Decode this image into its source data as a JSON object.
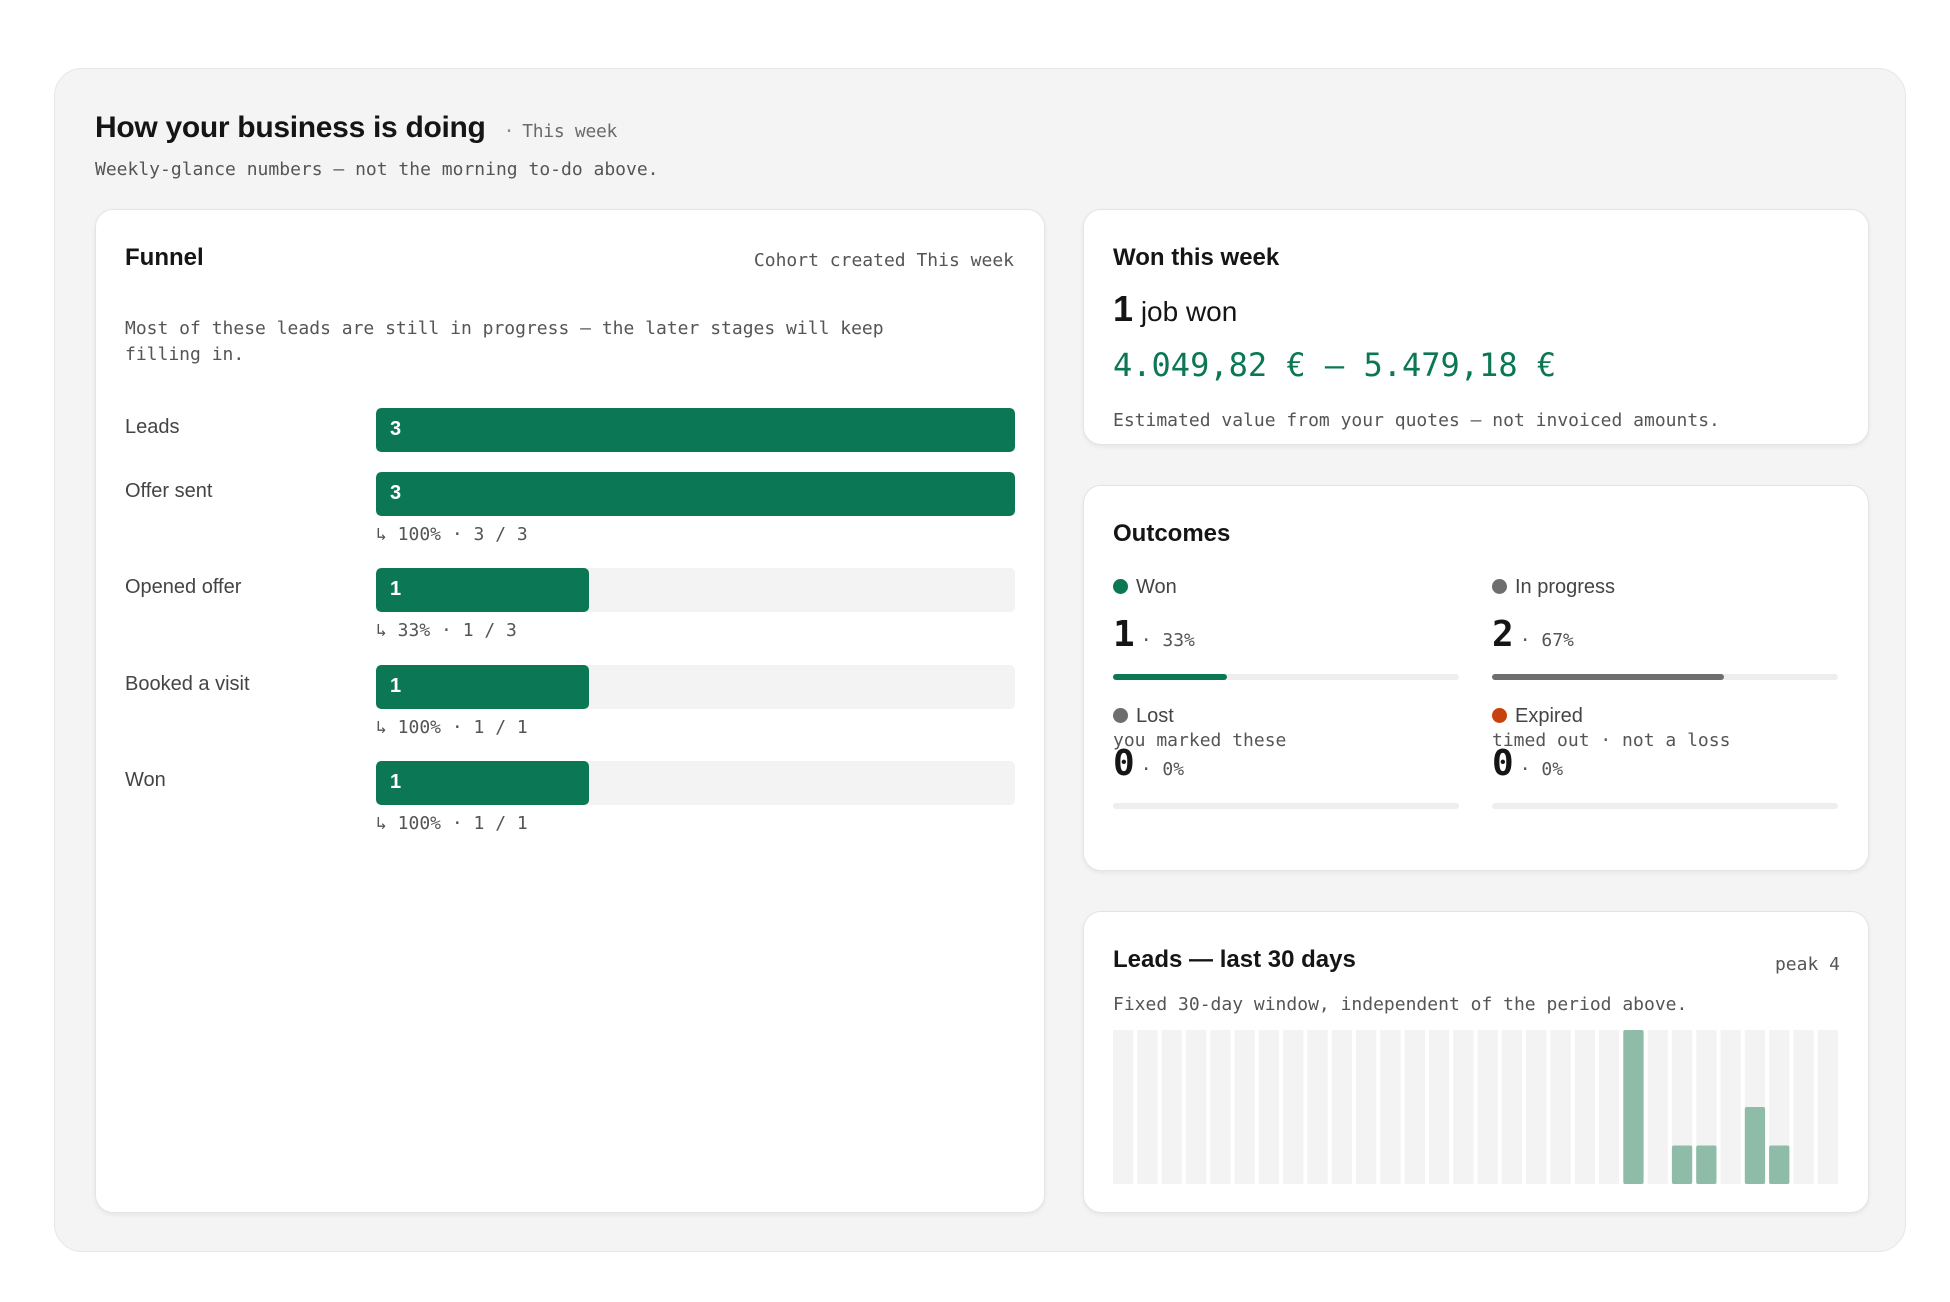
{
  "header": {
    "title": "How your business is doing",
    "separator": "·",
    "period": "This week",
    "subtitle": "Weekly-glance numbers — not the morning to-do above."
  },
  "funnel": {
    "title": "Funnel",
    "cohort": "Cohort created This week",
    "note": "Most of these leads are still in progress — the later stages will keep filling in.",
    "rows": [
      {
        "label": "Leads",
        "count": "3",
        "fill": 1.0,
        "conversion": ""
      },
      {
        "label": "Offer sent",
        "count": "3",
        "fill": 1.0,
        "conversion": "↳ 100% · 3 / 3"
      },
      {
        "label": "Opened offer",
        "count": "1",
        "fill": 0.333,
        "conversion": "↳ 33% · 1 / 3"
      },
      {
        "label": "Booked a visit",
        "count": "1",
        "fill": 0.333,
        "conversion": "↳ 100% · 1 / 1"
      },
      {
        "label": "Won",
        "count": "1",
        "fill": 0.333,
        "conversion": "↳ 100% · 1 / 1"
      }
    ]
  },
  "won": {
    "title": "Won this week",
    "count": "1",
    "count_label": "job won",
    "range": "4.049,82 € – 5.479,18 €",
    "caption": "Estimated value from your quotes — not invoiced amounts."
  },
  "outcomes": {
    "title": "Outcomes",
    "items": [
      {
        "label": "Won",
        "value": "1",
        "pct_text": "· 33%",
        "share": 0.33,
        "color": "#0b7755"
      },
      {
        "label": "In progress",
        "value": "2",
        "pct_text": "· 67%",
        "share": 0.67,
        "color": "#6e6e6e"
      },
      {
        "label": "Lost",
        "value": "0",
        "pct_text": "· 0%",
        "share": 0,
        "color": "#6e6e6e"
      },
      {
        "label": "Expired",
        "value": "0",
        "pct_text": "· 0%",
        "share": 0,
        "color": "#c8420c"
      }
    ],
    "lost_note": "you marked these",
    "expired_note": "timed out · not a loss"
  },
  "leads_chart": {
    "title": "Leads — last 30 days",
    "peak": "peak 4",
    "subtitle": "Fixed 30-day window, independent of the period above."
  },
  "chart_data": {
    "type": "bar",
    "title": "Leads — last 30 days",
    "categories": [
      "d1",
      "d2",
      "d3",
      "d4",
      "d5",
      "d6",
      "d7",
      "d8",
      "d9",
      "d10",
      "d11",
      "d12",
      "d13",
      "d14",
      "d15",
      "d16",
      "d17",
      "d18",
      "d19",
      "d20",
      "d21",
      "d22",
      "d23",
      "d24",
      "d25",
      "d26",
      "d27",
      "d28",
      "d29",
      "d30"
    ],
    "values": [
      0,
      0,
      0,
      0,
      0,
      0,
      0,
      0,
      0,
      0,
      0,
      0,
      0,
      0,
      0,
      0,
      0,
      0,
      0,
      0,
      0,
      4,
      0,
      1,
      1,
      0,
      2,
      1,
      0,
      0
    ],
    "ylim": [
      0,
      4
    ],
    "bar_color": "#8fbca8",
    "track_color": "#f3f3f3"
  }
}
